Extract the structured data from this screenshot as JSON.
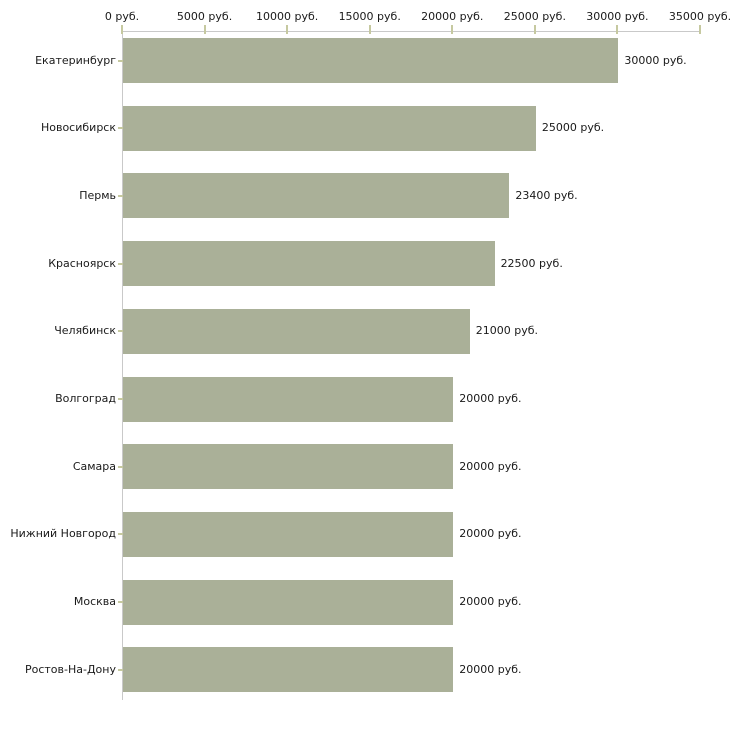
{
  "chart_data": {
    "type": "bar",
    "orientation": "horizontal",
    "title": "",
    "xlabel": "",
    "ylabel": "",
    "categories": [
      "Екатеринбург",
      "Новосибирск",
      "Пермь",
      "Красноярск",
      "Челябинск",
      "Волгоград",
      "Самара",
      "Нижний Новгород",
      "Москва",
      "Ростов-На-Дону"
    ],
    "values": [
      30000,
      25000,
      23400,
      22500,
      21000,
      20000,
      20000,
      20000,
      20000,
      20000
    ],
    "value_labels": [
      "30000 руб.",
      "25000 руб.",
      "23400 руб.",
      "22500 руб.",
      "21000 руб.",
      "20000 руб.",
      "20000 руб.",
      "20000 руб.",
      "20000 руб.",
      "20000 руб."
    ],
    "x_axis": {
      "position": "top",
      "min": 0,
      "max": 35000,
      "step": 5000,
      "tick_labels": [
        "0 руб.",
        "5000 руб.",
        "10000 руб.",
        "15000 руб.",
        "20000 руб.",
        "25000 руб.",
        "30000 руб.",
        "35000 руб."
      ]
    },
    "unit_suffix": " руб.",
    "grid": false,
    "legend": false,
    "colors": {
      "bar": "#aab098",
      "axis_line": "#c9c9c9",
      "tick": "#c6c9a0",
      "text": "#1a1a1a",
      "background": "#ffffff"
    }
  }
}
